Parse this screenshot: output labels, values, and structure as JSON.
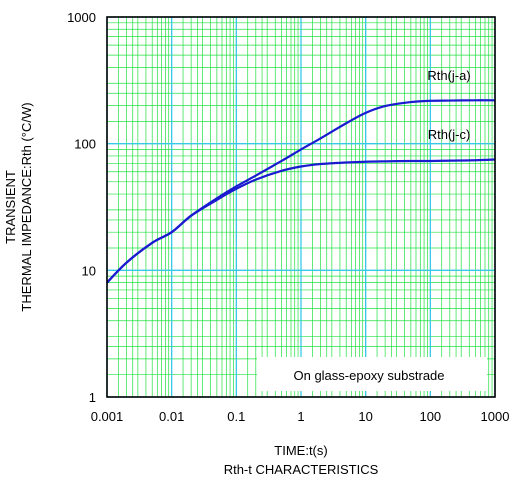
{
  "chart_data": {
    "type": "line",
    "title": "Rth-t CHARACTERISTICS",
    "xlabel": "TIME:t(s)",
    "ylabel_lines": [
      "TRANSIENT",
      "THERMAL IMPEDANCE:Rth (°C/W)"
    ],
    "xscale": "log",
    "yscale": "log",
    "xlim": [
      0.001,
      1000
    ],
    "ylim": [
      1,
      1000
    ],
    "x_ticks": [
      0.001,
      0.01,
      0.1,
      1,
      10,
      100,
      1000
    ],
    "x_tick_labels": [
      "0.001",
      "0.01",
      "0.1",
      "1",
      "10",
      "100",
      "1000"
    ],
    "y_ticks": [
      1,
      10,
      100,
      1000
    ],
    "y_tick_labels": [
      "1",
      "10",
      "100",
      "1000"
    ],
    "grid": true,
    "annotation": "On glass-epoxy substrade",
    "colors": {
      "series": "#1a1ad0",
      "major_grid": "#38c8e8",
      "minor_grid": "#20e040",
      "frame": "#000000"
    },
    "series": [
      {
        "name": "Rth(j-a)",
        "x": [
          0.001,
          0.002,
          0.005,
          0.01,
          0.02,
          0.05,
          0.1,
          0.2,
          0.5,
          1,
          2,
          5,
          10,
          20,
          50,
          100,
          200,
          500,
          1000
        ],
        "y": [
          8,
          11.5,
          16.5,
          20,
          27,
          37,
          46,
          56,
          73,
          90,
          110,
          145,
          175,
          198,
          213,
          218,
          219,
          220,
          220
        ]
      },
      {
        "name": "Rth(j-c)",
        "x": [
          0.001,
          0.002,
          0.005,
          0.01,
          0.02,
          0.05,
          0.1,
          0.2,
          0.5,
          1,
          2,
          5,
          10,
          20,
          50,
          100,
          200,
          500,
          1000
        ],
        "y": [
          8,
          11.5,
          16.5,
          20,
          27,
          36,
          44,
          52,
          61,
          66,
          69,
          71,
          72,
          72.5,
          73,
          73,
          73.5,
          74,
          75
        ]
      }
    ]
  }
}
